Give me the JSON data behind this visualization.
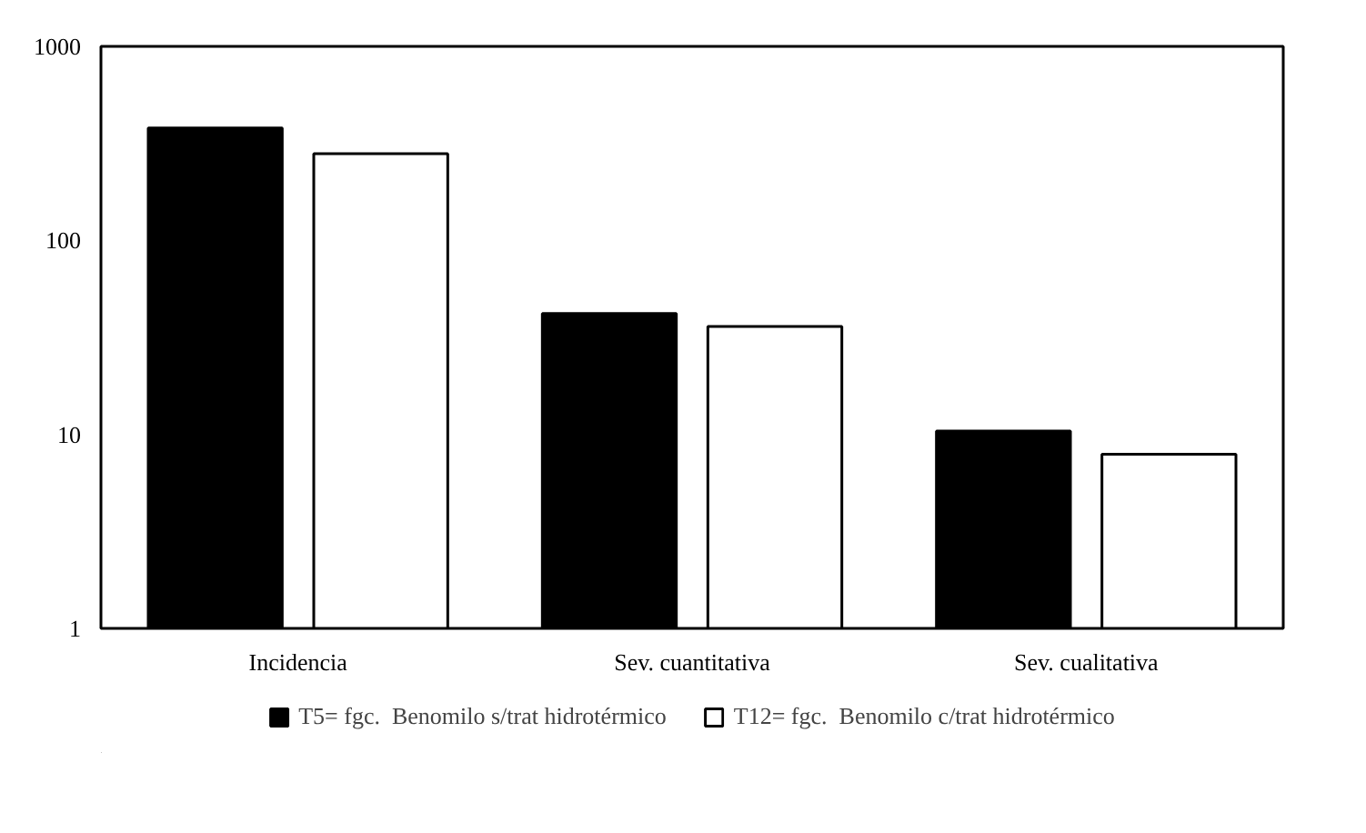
{
  "chart_data": {
    "type": "bar",
    "categories": [
      "Incidencia",
      "Sev. cuantitativa",
      "Sev. cualitativa"
    ],
    "series": [
      {
        "name": "T5= fgc.  Benomilo s/trat hidrotérmico",
        "color": "#000000",
        "values": [
          380,
          42,
          10.4
        ]
      },
      {
        "name": "T12= fgc.  Benomilo c/trat hidrotérmico",
        "color": "#ffffff",
        "values": [
          280,
          36,
          7.9
        ]
      }
    ],
    "log": true,
    "ylim": [
      1,
      1000
    ],
    "yticks": [
      1,
      10,
      100,
      1000
    ],
    "grid": false,
    "legend": "bottom"
  }
}
